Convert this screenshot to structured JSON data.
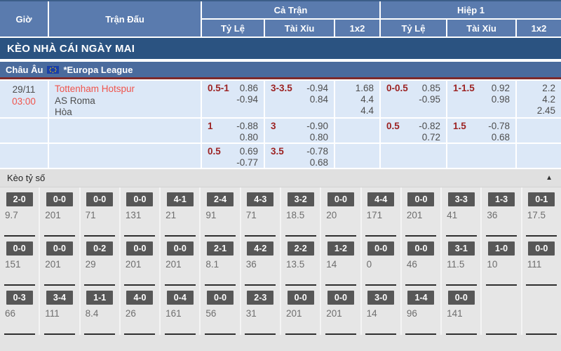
{
  "colors": {
    "header_blue": "#5a7bae",
    "banner_blue": "#2b5381",
    "league_blue": "#4a6b9d",
    "league_red_border": "#7e2a2a",
    "row_light_blue": "#dce8f7",
    "handicap_maroon": "#9c2222",
    "team_red": "#f0544c",
    "score_box_gray": "#575757",
    "section_gray": "#e6e6e6"
  },
  "header": {
    "col_time": "Giờ",
    "col_match": "Trận Đấu",
    "group_full": "Cả Trận",
    "group_half": "Hiệp 1",
    "sub_handicap": "Tỷ Lệ",
    "sub_overunder": "Tài Xỉu",
    "sub_1x2": "1x2",
    "sub_handicap2": "Tỷ Lệ",
    "sub_overunder2": "Tài Xỉu",
    "sub_1x22": "1x2"
  },
  "banner": {
    "title": "KÈO NHÀ CÁI NGÀY MAI"
  },
  "league": {
    "region": "Châu Âu",
    "flag_icon": "eu-flag-icon",
    "name": "*Europa League"
  },
  "match": {
    "date": "29/11",
    "time": "03:00",
    "home": "Tottenham Hotspur",
    "away": "AS Roma",
    "draw": "Hòa",
    "odds_rows": [
      {
        "ft_hdp": "0.5-1",
        "ft_hdp_o1": "0.86",
        "ft_hdp_o2": "-0.94",
        "ft_ou": "3-3.5",
        "ft_ou_o1": "-0.94",
        "ft_ou_o2": "0.84",
        "ft_1x2_1": "1.68",
        "ft_1x2_2": "4.4",
        "ft_1x2_3": "4.4",
        "h1_hdp": "0-0.5",
        "h1_hdp_o1": "0.85",
        "h1_hdp_o2": "-0.95",
        "h1_ou": "1-1.5",
        "h1_ou_o1": "0.92",
        "h1_ou_o2": "0.98",
        "h1_1x2_1": "2.2",
        "h1_1x2_2": "4.2",
        "h1_1x2_3": "2.45"
      },
      {
        "ft_hdp": "1",
        "ft_hdp_o1": "-0.88",
        "ft_hdp_o2": "0.80",
        "ft_ou": "3",
        "ft_ou_o1": "-0.90",
        "ft_ou_o2": "0.80",
        "ft_1x2_1": "",
        "ft_1x2_2": "",
        "ft_1x2_3": "",
        "h1_hdp": "0.5",
        "h1_hdp_o1": "-0.82",
        "h1_hdp_o2": "0.72",
        "h1_ou": "1.5",
        "h1_ou_o1": "-0.78",
        "h1_ou_o2": "0.68",
        "h1_1x2_1": "",
        "h1_1x2_2": "",
        "h1_1x2_3": ""
      },
      {
        "ft_hdp": "0.5",
        "ft_hdp_o1": "0.69",
        "ft_hdp_o2": "-0.77",
        "ft_ou": "3.5",
        "ft_ou_o1": "-0.78",
        "ft_ou_o2": "0.68",
        "ft_1x2_1": "",
        "ft_1x2_2": "",
        "ft_1x2_3": "",
        "h1_hdp": "",
        "h1_hdp_o1": "",
        "h1_hdp_o2": "",
        "h1_ou": "",
        "h1_ou_o1": "",
        "h1_ou_o2": "",
        "h1_1x2_1": "",
        "h1_1x2_2": "",
        "h1_1x2_3": ""
      }
    ]
  },
  "score_section": {
    "title": "Kèo tỷ số",
    "collapse_icon": "▲",
    "rows": [
      [
        {
          "score": "2-0",
          "odds": "9.7"
        },
        {
          "score": "0-0",
          "odds": "201"
        },
        {
          "score": "0-0",
          "odds": "71"
        },
        {
          "score": "0-0",
          "odds": "131"
        },
        {
          "score": "4-1",
          "odds": "21"
        },
        {
          "score": "2-4",
          "odds": "91"
        },
        {
          "score": "4-3",
          "odds": "71"
        },
        {
          "score": "3-2",
          "odds": "18.5"
        },
        {
          "score": "0-0",
          "odds": "20"
        },
        {
          "score": "4-4",
          "odds": "171"
        },
        {
          "score": "0-0",
          "odds": "201"
        },
        {
          "score": "3-3",
          "odds": "41"
        },
        {
          "score": "1-3",
          "odds": "36"
        },
        {
          "score": "0-1",
          "odds": "17.5"
        }
      ],
      [
        {
          "score": "0-0",
          "odds": "151"
        },
        {
          "score": "0-0",
          "odds": "201"
        },
        {
          "score": "0-2",
          "odds": "29"
        },
        {
          "score": "0-0",
          "odds": "201"
        },
        {
          "score": "0-0",
          "odds": "201"
        },
        {
          "score": "2-1",
          "odds": "8.1"
        },
        {
          "score": "4-2",
          "odds": "36"
        },
        {
          "score": "2-2",
          "odds": "13.5"
        },
        {
          "score": "1-2",
          "odds": "14"
        },
        {
          "score": "0-0",
          "odds": "0"
        },
        {
          "score": "0-0",
          "odds": "46"
        },
        {
          "score": "3-1",
          "odds": "11.5"
        },
        {
          "score": "1-0",
          "odds": "10"
        },
        {
          "score": "0-0",
          "odds": "111"
        }
      ],
      [
        {
          "score": "0-3",
          "odds": "66"
        },
        {
          "score": "3-4",
          "odds": "111"
        },
        {
          "score": "1-1",
          "odds": "8.4"
        },
        {
          "score": "4-0",
          "odds": "26"
        },
        {
          "score": "0-4",
          "odds": "161"
        },
        {
          "score": "0-0",
          "odds": "56"
        },
        {
          "score": "2-3",
          "odds": "31"
        },
        {
          "score": "0-0",
          "odds": "201"
        },
        {
          "score": "0-0",
          "odds": "201"
        },
        {
          "score": "3-0",
          "odds": "14"
        },
        {
          "score": "1-4",
          "odds": "96"
        },
        {
          "score": "0-0",
          "odds": "141"
        },
        null,
        null
      ]
    ]
  }
}
